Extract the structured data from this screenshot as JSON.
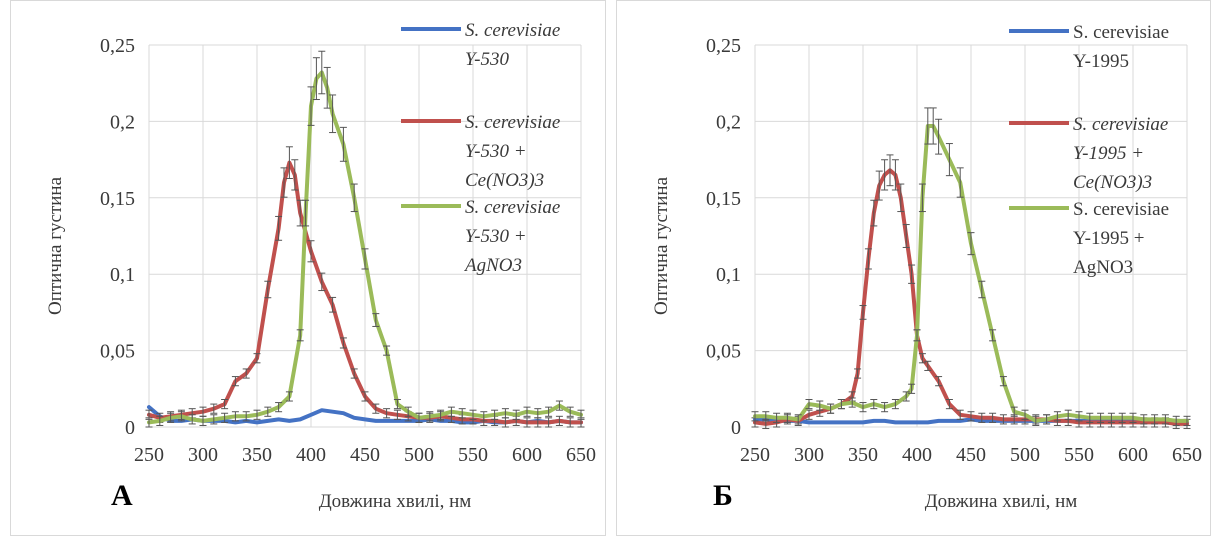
{
  "chart_data": [
    {
      "type": "line",
      "panel_label": "А",
      "xlabel": "Довжина хвилі, нм",
      "ylabel": "Оптична густина",
      "xlim": [
        250,
        650
      ],
      "ylim": [
        0,
        0.25
      ],
      "x_ticks": [
        "250",
        "300",
        "350",
        "400",
        "450",
        "500",
        "550",
        "600",
        "650"
      ],
      "y_ticks": [
        "0",
        "0,05",
        "0,1",
        "0,15",
        "0,2",
        "0,25"
      ],
      "grid": true,
      "legend_position": "right",
      "series": [
        {
          "name": "S. cerevisiae Y-530",
          "legend_lines": [
            "S. cerevisiae",
            "Y-530"
          ],
          "italic": true,
          "color": "#4472c4",
          "x": [
            250,
            260,
            270,
            280,
            290,
            300,
            310,
            320,
            330,
            340,
            350,
            360,
            370,
            380,
            390,
            400,
            410,
            420,
            430,
            440,
            450,
            460,
            470,
            480,
            490,
            500,
            510,
            520,
            530,
            540,
            550,
            560,
            570,
            580,
            590,
            600,
            610,
            620,
            630,
            640,
            650
          ],
          "y": [
            0.013,
            0.007,
            0.004,
            0.004,
            0.005,
            0.004,
            0.004,
            0.004,
            0.003,
            0.004,
            0.003,
            0.004,
            0.005,
            0.004,
            0.005,
            0.008,
            0.011,
            0.01,
            0.009,
            0.006,
            0.005,
            0.004,
            0.004,
            0.004,
            0.004,
            0.004,
            0.005,
            0.004,
            0.004,
            0.003,
            0.003,
            0.004,
            0.003,
            0.003,
            0.004,
            0.003,
            0.004,
            0.003,
            0.004,
            0.003,
            0.003
          ]
        },
        {
          "name": "S. cerevisiae Y-530 + Ce(NO3)3",
          "legend_lines": [
            "S. cerevisiae",
            "Y-530 +",
            "Ce(NO3)3"
          ],
          "italic": true,
          "color": "#c0504d",
          "x": [
            250,
            260,
            270,
            280,
            290,
            300,
            310,
            320,
            330,
            340,
            350,
            360,
            370,
            375,
            380,
            385,
            390,
            400,
            410,
            420,
            430,
            440,
            450,
            460,
            470,
            480,
            490,
            500,
            510,
            520,
            530,
            540,
            550,
            560,
            570,
            580,
            590,
            600,
            610,
            620,
            630,
            640,
            650
          ],
          "y": [
            0.008,
            0.006,
            0.007,
            0.008,
            0.009,
            0.01,
            0.012,
            0.015,
            0.03,
            0.035,
            0.045,
            0.09,
            0.13,
            0.16,
            0.173,
            0.165,
            0.14,
            0.115,
            0.095,
            0.08,
            0.055,
            0.035,
            0.02,
            0.012,
            0.009,
            0.008,
            0.007,
            0.006,
            0.006,
            0.007,
            0.006,
            0.005,
            0.005,
            0.004,
            0.004,
            0.003,
            0.004,
            0.003,
            0.003,
            0.003,
            0.004,
            0.003,
            0.003
          ]
        },
        {
          "name": "S. cerevisiae Y-530 + AgNO3",
          "legend_lines": [
            "S. cerevisiae",
            "Y-530 +",
            "AgNO3"
          ],
          "italic": true,
          "color": "#9bbb59",
          "x": [
            250,
            260,
            270,
            280,
            290,
            300,
            310,
            320,
            330,
            340,
            350,
            360,
            370,
            380,
            390,
            395,
            400,
            405,
            410,
            415,
            420,
            430,
            440,
            450,
            460,
            470,
            480,
            490,
            500,
            510,
            520,
            530,
            540,
            550,
            560,
            570,
            580,
            590,
            600,
            610,
            620,
            630,
            640,
            650
          ],
          "y": [
            0.003,
            0.004,
            0.006,
            0.007,
            0.005,
            0.004,
            0.005,
            0.006,
            0.007,
            0.007,
            0.008,
            0.01,
            0.013,
            0.02,
            0.06,
            0.14,
            0.21,
            0.228,
            0.232,
            0.222,
            0.205,
            0.185,
            0.15,
            0.11,
            0.07,
            0.05,
            0.015,
            0.01,
            0.006,
            0.007,
            0.008,
            0.01,
            0.009,
            0.008,
            0.007,
            0.008,
            0.009,
            0.008,
            0.01,
            0.009,
            0.01,
            0.014,
            0.01,
            0.008
          ]
        }
      ]
    },
    {
      "type": "line",
      "panel_label": "Б",
      "xlabel": "Довжина хвилі, нм",
      "ylabel": "Оптична густина",
      "xlim": [
        250,
        650
      ],
      "ylim": [
        0,
        0.25
      ],
      "x_ticks": [
        "250",
        "300",
        "350",
        "400",
        "450",
        "500",
        "550",
        "600",
        "650"
      ],
      "y_ticks": [
        "0",
        "0,05",
        "0,1",
        "0,15",
        "0,2",
        "0,25"
      ],
      "grid": true,
      "legend_position": "right",
      "series": [
        {
          "name": "S. cerevisiae Y-1995",
          "legend_lines": [
            "S. cerevisiae",
            "Y-1995"
          ],
          "italic": false,
          "color": "#4472c4",
          "x": [
            250,
            260,
            270,
            280,
            290,
            300,
            310,
            320,
            330,
            340,
            350,
            360,
            370,
            380,
            390,
            400,
            410,
            420,
            430,
            440,
            450,
            460,
            470,
            480,
            490,
            500,
            510,
            520,
            530,
            540,
            550,
            560,
            570,
            580,
            590,
            600,
            610,
            620,
            630,
            640,
            650
          ],
          "y": [
            0.005,
            0.005,
            0.004,
            0.004,
            0.004,
            0.003,
            0.003,
            0.003,
            0.003,
            0.003,
            0.003,
            0.004,
            0.004,
            0.003,
            0.003,
            0.003,
            0.003,
            0.004,
            0.004,
            0.004,
            0.005,
            0.004,
            0.004,
            0.004,
            0.004,
            0.004,
            0.004,
            0.004,
            0.004,
            0.004,
            0.004,
            0.004,
            0.004,
            0.004,
            0.004,
            0.004,
            0.004,
            0.004,
            0.004,
            0.003,
            0.003
          ]
        },
        {
          "name": "S. cerevisiae Y-1995 + Ce(NO3)3",
          "legend_lines": [
            "S. cerevisiae",
            "Y-1995 +",
            "Ce(NO3)3"
          ],
          "italic": true,
          "color": "#c0504d",
          "x": [
            250,
            260,
            270,
            280,
            290,
            300,
            310,
            320,
            330,
            340,
            345,
            350,
            355,
            360,
            365,
            370,
            375,
            380,
            385,
            390,
            395,
            400,
            405,
            410,
            420,
            430,
            440,
            450,
            460,
            470,
            480,
            490,
            500,
            510,
            520,
            530,
            540,
            550,
            560,
            570,
            580,
            590,
            600,
            610,
            620,
            630,
            640,
            650
          ],
          "y": [
            0.003,
            0.002,
            0.003,
            0.005,
            0.004,
            0.008,
            0.01,
            0.012,
            0.015,
            0.02,
            0.035,
            0.075,
            0.11,
            0.14,
            0.158,
            0.165,
            0.168,
            0.165,
            0.15,
            0.125,
            0.1,
            0.06,
            0.045,
            0.04,
            0.03,
            0.015,
            0.008,
            0.007,
            0.006,
            0.006,
            0.005,
            0.005,
            0.005,
            0.005,
            0.005,
            0.004,
            0.004,
            0.003,
            0.003,
            0.003,
            0.003,
            0.003,
            0.003,
            0.003,
            0.003,
            0.003,
            0.002,
            0.002
          ]
        },
        {
          "name": "S. cerevisiae Y-1995 + AgNO3",
          "legend_lines": [
            "S. cerevisiae",
            "Y-1995 +",
            "AgNO3"
          ],
          "italic": false,
          "color": "#9bbb59",
          "x": [
            250,
            260,
            270,
            280,
            290,
            300,
            310,
            320,
            330,
            340,
            350,
            360,
            370,
            380,
            390,
            395,
            400,
            405,
            410,
            415,
            420,
            430,
            440,
            450,
            460,
            470,
            480,
            490,
            500,
            510,
            520,
            530,
            540,
            550,
            560,
            570,
            580,
            590,
            600,
            610,
            620,
            630,
            640,
            650
          ],
          "y": [
            0.007,
            0.007,
            0.006,
            0.006,
            0.005,
            0.015,
            0.014,
            0.012,
            0.015,
            0.016,
            0.013,
            0.015,
            0.013,
            0.015,
            0.02,
            0.025,
            0.06,
            0.15,
            0.197,
            0.197,
            0.19,
            0.175,
            0.16,
            0.12,
            0.09,
            0.06,
            0.03,
            0.01,
            0.008,
            0.004,
            0.005,
            0.007,
            0.008,
            0.007,
            0.006,
            0.006,
            0.006,
            0.006,
            0.006,
            0.005,
            0.005,
            0.005,
            0.004,
            0.004
          ]
        }
      ]
    }
  ]
}
